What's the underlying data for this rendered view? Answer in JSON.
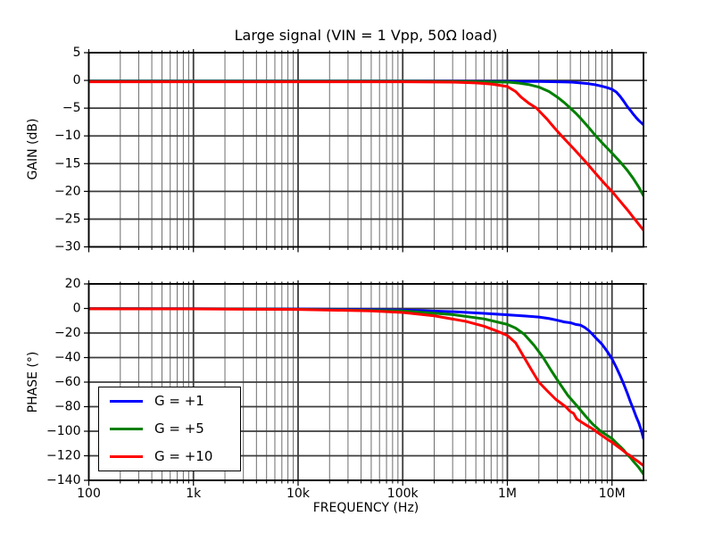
{
  "title": "Large signal (VIN = 1 Vpp, 50Ω load)",
  "xlabel": "FREQUENCY (Hz)",
  "style": {
    "background": "#ffffff",
    "frame_color": "#000000",
    "grid_major_color": "#3d3d3d",
    "grid_minor_color": "#6e6e6e",
    "curve_width": 3,
    "blue": "#0000ff",
    "green": "#007f00",
    "red": "#ff0000"
  },
  "legend": {
    "position": "lower left",
    "entries": [
      {
        "label": "G = +1",
        "color": "#0000ff"
      },
      {
        "label": "G = +5",
        "color": "#007f00"
      },
      {
        "label": "G = +10",
        "color": "#ff0000"
      }
    ]
  },
  "chart_data": [
    {
      "id": "gain",
      "type": "line",
      "title": "Large signal (VIN = 1 Vpp, 50Ω load)",
      "xlabel": "",
      "ylabel": "GAIN (dB)",
      "xscale": "log",
      "xlim": [
        100,
        20000000
      ],
      "ylim": [
        -30,
        5
      ],
      "grid": "major+minor-x, major-y",
      "legend_position": "none",
      "show_x_tick_labels": false,
      "yticks": [
        5,
        0,
        -5,
        -10,
        -15,
        -20,
        -25,
        -30
      ],
      "xticks": [
        [
          100,
          "100"
        ],
        [
          1000,
          "1k"
        ],
        [
          10000,
          "10k"
        ],
        [
          100000,
          "100k"
        ],
        [
          1000000,
          "1M"
        ],
        [
          10000000,
          "10M"
        ]
      ],
      "series": [
        {
          "name": "G = +1",
          "color": "#0000ff",
          "points": [
            [
              100,
              -0.2
            ],
            [
              1000,
              -0.2
            ],
            [
              10000,
              -0.2
            ],
            [
              100000,
              -0.2
            ],
            [
              500000,
              -0.2
            ],
            [
              1000000,
              -0.2
            ],
            [
              2000000,
              -0.2
            ],
            [
              3000000,
              -0.25
            ],
            [
              4000000,
              -0.3
            ],
            [
              5000000,
              -0.45
            ],
            [
              6000000,
              -0.6
            ],
            [
              7000000,
              -0.8
            ],
            [
              8000000,
              -1.05
            ],
            [
              9000000,
              -1.3
            ],
            [
              10000000,
              -1.6
            ],
            [
              11000000,
              -2.1
            ],
            [
              12000000,
              -2.9
            ],
            [
              13000000,
              -3.8
            ],
            [
              14000000,
              -4.7
            ],
            [
              15000000,
              -5.4
            ],
            [
              16000000,
              -6.1
            ],
            [
              17000000,
              -6.7
            ],
            [
              18000000,
              -7.2
            ],
            [
              19000000,
              -7.6
            ],
            [
              20000000,
              -8.0
            ]
          ]
        },
        {
          "name": "G = +5",
          "color": "#007f00",
          "points": [
            [
              100,
              -0.2
            ],
            [
              1000,
              -0.2
            ],
            [
              10000,
              -0.2
            ],
            [
              100000,
              -0.2
            ],
            [
              500000,
              -0.25
            ],
            [
              1000000,
              -0.3
            ],
            [
              1300000,
              -0.5
            ],
            [
              1600000,
              -0.75
            ],
            [
              2000000,
              -1.2
            ],
            [
              2500000,
              -2.0
            ],
            [
              3000000,
              -3.0
            ],
            [
              3500000,
              -4.0
            ],
            [
              4000000,
              -5.0
            ],
            [
              4500000,
              -5.9
            ],
            [
              5000000,
              -6.8
            ],
            [
              6000000,
              -8.5
            ],
            [
              7000000,
              -10.0
            ],
            [
              8000000,
              -11.2
            ],
            [
              9000000,
              -12.2
            ],
            [
              10000000,
              -13.1
            ],
            [
              12000000,
              -14.7
            ],
            [
              14000000,
              -16.2
            ],
            [
              16000000,
              -17.7
            ],
            [
              18000000,
              -19.2
            ],
            [
              20000000,
              -20.8
            ]
          ]
        },
        {
          "name": "G = +10",
          "color": "#ff0000",
          "points": [
            [
              100,
              -0.25
            ],
            [
              1000,
              -0.25
            ],
            [
              10000,
              -0.25
            ],
            [
              100000,
              -0.25
            ],
            [
              300000,
              -0.3
            ],
            [
              500000,
              -0.45
            ],
            [
              700000,
              -0.65
            ],
            [
              1000000,
              -1.1
            ],
            [
              1200000,
              -2.0
            ],
            [
              1350000,
              -3.0
            ],
            [
              1600000,
              -4.1
            ],
            [
              1900000,
              -5.0
            ],
            [
              2400000,
              -7.0
            ],
            [
              2800000,
              -8.5
            ],
            [
              3300000,
              -10.0
            ],
            [
              4400000,
              -12.5
            ],
            [
              5800000,
              -15.0
            ],
            [
              7000000,
              -16.8
            ],
            [
              8500000,
              -18.6
            ],
            [
              10000000,
              -20.0
            ],
            [
              12000000,
              -21.8
            ],
            [
              14000000,
              -23.3
            ],
            [
              16000000,
              -24.7
            ],
            [
              18000000,
              -25.9
            ],
            [
              20000000,
              -27.0
            ]
          ]
        }
      ]
    },
    {
      "id": "phase",
      "type": "line",
      "title": "",
      "xlabel": "FREQUENCY (Hz)",
      "ylabel": "PHASE (°)",
      "xscale": "log",
      "xlim": [
        100,
        20000000
      ],
      "ylim": [
        -140,
        20
      ],
      "grid": "major+minor-x, major-y",
      "legend_position": "lower left",
      "show_x_tick_labels": true,
      "yticks": [
        20,
        0,
        -20,
        -40,
        -60,
        -80,
        -100,
        -120,
        -140
      ],
      "xticks": [
        [
          100,
          "100"
        ],
        [
          1000,
          "1k"
        ],
        [
          10000,
          "10k"
        ],
        [
          100000,
          "100k"
        ],
        [
          1000000,
          "1M"
        ],
        [
          10000000,
          "10M"
        ]
      ],
      "series": [
        {
          "name": "G = +1",
          "color": "#0000ff",
          "points": [
            [
              100,
              -0.1
            ],
            [
              1000,
              -0.2
            ],
            [
              10000,
              -0.4
            ],
            [
              100000,
              -1.3
            ],
            [
              300000,
              -2.6
            ],
            [
              600000,
              -4.0
            ],
            [
              1000000,
              -5.2
            ],
            [
              1500000,
              -6.2
            ],
            [
              2000000,
              -7.0
            ],
            [
              2500000,
              -8.2
            ],
            [
              3000000,
              -9.6
            ],
            [
              3500000,
              -11.0
            ],
            [
              4000000,
              -11.6
            ],
            [
              4500000,
              -13.0
            ],
            [
              5000000,
              -13.6
            ],
            [
              5500000,
              -15.5
            ],
            [
              6000000,
              -18.0
            ],
            [
              6500000,
              -21.0
            ],
            [
              7000000,
              -24.0
            ],
            [
              8000000,
              -29.0
            ],
            [
              9000000,
              -35.0
            ],
            [
              10000000,
              -41.0
            ],
            [
              11000000,
              -48.0
            ],
            [
              12000000,
              -55.0
            ],
            [
              13000000,
              -62.0
            ],
            [
              14000000,
              -69.0
            ],
            [
              15000000,
              -76.0
            ],
            [
              16000000,
              -82.0
            ],
            [
              17000000,
              -88.0
            ],
            [
              18000000,
              -93.0
            ],
            [
              19000000,
              -99.0
            ],
            [
              20000000,
              -106.0
            ]
          ]
        },
        {
          "name": "G = +5",
          "color": "#007f00",
          "points": [
            [
              100,
              -0.2
            ],
            [
              1000,
              -0.3
            ],
            [
              10000,
              -0.6
            ],
            [
              100000,
              -2.0
            ],
            [
              300000,
              -5.0
            ],
            [
              600000,
              -8.5
            ],
            [
              1000000,
              -13.0
            ],
            [
              1200000,
              -16.0
            ],
            [
              1450000,
              -21.0
            ],
            [
              1800000,
              -30.0
            ],
            [
              2200000,
              -40.0
            ],
            [
              2600000,
              -50.0
            ],
            [
              3100000,
              -60.0
            ],
            [
              3800000,
              -71.0
            ],
            [
              4700000,
              -80.0
            ],
            [
              5500000,
              -87.0
            ],
            [
              6500000,
              -94.0
            ],
            [
              7800000,
              -100.0
            ],
            [
              9000000,
              -103.5
            ],
            [
              10000000,
              -106.0
            ],
            [
              11000000,
              -109.5
            ],
            [
              12000000,
              -112.5
            ],
            [
              13000000,
              -115.5
            ],
            [
              14000000,
              -119.0
            ],
            [
              15000000,
              -121.5
            ],
            [
              16000000,
              -124.5
            ],
            [
              18000000,
              -129.5
            ],
            [
              20000000,
              -135.0
            ]
          ]
        },
        {
          "name": "G = +10",
          "color": "#ff0000",
          "points": [
            [
              100,
              -0.3
            ],
            [
              1000,
              -0.4
            ],
            [
              10000,
              -0.8
            ],
            [
              50000,
              -2.0
            ],
            [
              100000,
              -3.3
            ],
            [
              200000,
              -6.0
            ],
            [
              400000,
              -10.5
            ],
            [
              600000,
              -14.5
            ],
            [
              800000,
              -18.5
            ],
            [
              1000000,
              -22.0
            ],
            [
              1200000,
              -28.0
            ],
            [
              1450000,
              -40.0
            ],
            [
              1700000,
              -50.0
            ],
            [
              2000000,
              -60.0
            ],
            [
              2400000,
              -67.0
            ],
            [
              2900000,
              -74.0
            ],
            [
              3600000,
              -80.0
            ],
            [
              4000000,
              -84.0
            ],
            [
              4300000,
              -85.5
            ],
            [
              4600000,
              -90.0
            ],
            [
              5200000,
              -93.0
            ],
            [
              5800000,
              -95.5
            ],
            [
              6500000,
              -98.0
            ],
            [
              7000000,
              -100.0
            ],
            [
              8000000,
              -103.5
            ],
            [
              9000000,
              -106.5
            ],
            [
              10000000,
              -109.0
            ],
            [
              12000000,
              -114.0
            ],
            [
              14000000,
              -118.5
            ],
            [
              15000000,
              -120.0
            ],
            [
              16000000,
              -122.0
            ],
            [
              18000000,
              -125.0
            ],
            [
              20000000,
              -128.0
            ]
          ]
        }
      ]
    }
  ]
}
